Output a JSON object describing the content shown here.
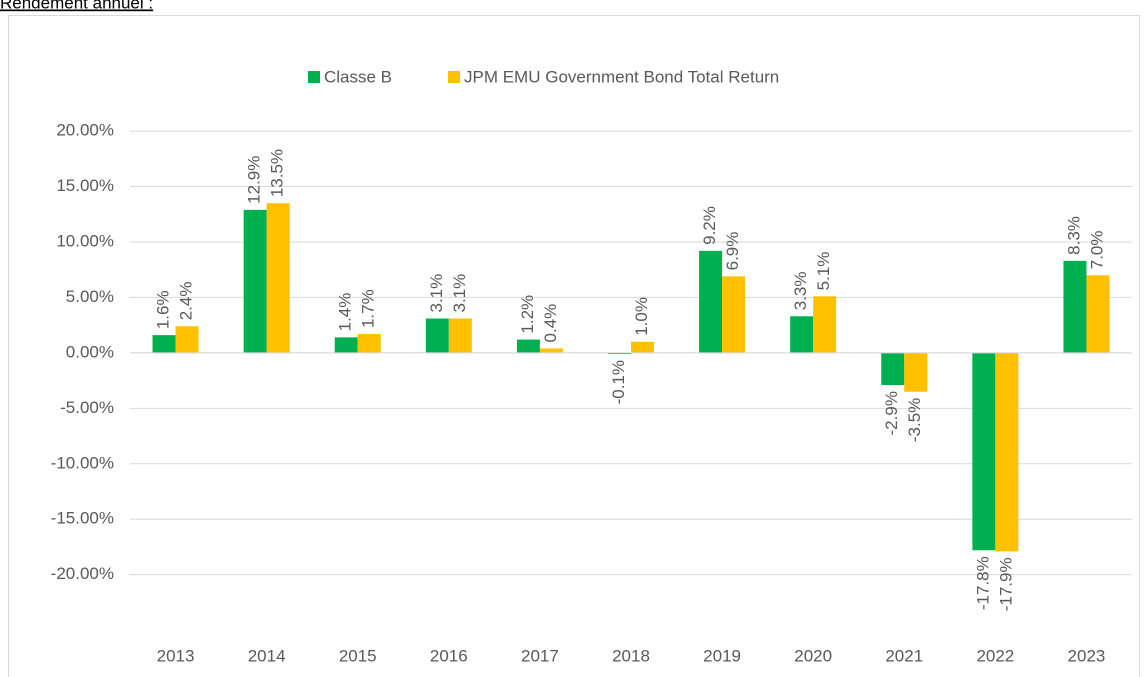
{
  "chart_data": {
    "type": "bar",
    "title": "Rendement annuel :",
    "categories": [
      "2013",
      "2014",
      "2015",
      "2016",
      "2017",
      "2018",
      "2019",
      "2020",
      "2021",
      "2022",
      "2023"
    ],
    "series": [
      {
        "name": "Classe B",
        "color": "#00b050",
        "values": [
          1.6,
          12.9,
          1.4,
          3.1,
          1.2,
          -0.1,
          9.2,
          3.3,
          -2.9,
          -17.8,
          8.3
        ],
        "value_labels": [
          "1.6%",
          "12.9%",
          "1.4%",
          "3.1%",
          "1.2%",
          "-0.1%",
          "9.2%",
          "3.3%",
          "-2.9%",
          "-17.8%",
          "8.3%"
        ]
      },
      {
        "name": "JPM EMU Government Bond Total Return",
        "color": "#ffc000",
        "values": [
          2.4,
          13.5,
          1.7,
          3.1,
          0.4,
          1.0,
          6.9,
          5.1,
          -3.5,
          -17.9,
          7.0
        ],
        "value_labels": [
          "2.4%",
          "13.5%",
          "1.7%",
          "3.1%",
          "0.4%",
          "1.0%",
          "6.9%",
          "5.1%",
          "-3.5%",
          "-17.9%",
          "7.0%"
        ]
      }
    ],
    "ylim": [
      -25.8,
      21
    ],
    "yticks": [
      {
        "value": -20,
        "label": "-20.00%"
      },
      {
        "value": -15,
        "label": "-15.00%"
      },
      {
        "value": -10,
        "label": "-10.00%"
      },
      {
        "value": -5,
        "label": "-5.00%"
      },
      {
        "value": 0,
        "label": "0.00%"
      },
      {
        "value": 5,
        "label": "5.00%"
      },
      {
        "value": 10,
        "label": "10.00%"
      },
      {
        "value": 15,
        "label": "15.00%"
      },
      {
        "value": 20,
        "label": "20.00%"
      }
    ],
    "grid": true,
    "legend": "top"
  }
}
